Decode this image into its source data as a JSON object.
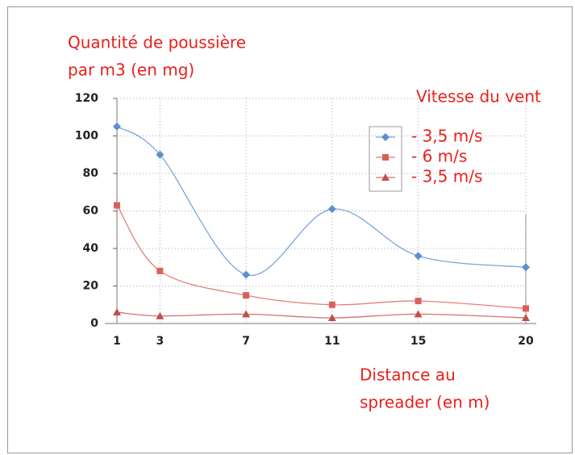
{
  "chart_data": {
    "type": "line",
    "y_label": [
      "Quantité de poussière",
      "par m3 (en mg)"
    ],
    "x_label": [
      "Distance au",
      "spreader (en m)"
    ],
    "legend_title": "Vitesse du vent",
    "x": [
      1,
      3,
      7,
      11,
      15,
      20
    ],
    "xlim": [
      1,
      20
    ],
    "xticks": [
      1,
      3,
      7,
      11,
      15,
      20
    ],
    "ylim": [
      0,
      120
    ],
    "yticks": [
      0,
      20,
      40,
      60,
      80,
      100,
      120
    ],
    "grid": true,
    "series": [
      {
        "name": "- 3,5 m/s",
        "color": "#5b8fd0",
        "marker": "diamond",
        "values": [
          105,
          90,
          26,
          61,
          36,
          30
        ]
      },
      {
        "name": "- 6 m/s",
        "color": "#d9605a",
        "marker": "square",
        "values": [
          63,
          28,
          15,
          10,
          12,
          8
        ]
      },
      {
        "name": "- 3,5 m/s",
        "color": "#c0504d",
        "marker": "triangle",
        "values": [
          6,
          4,
          5,
          3,
          5,
          3
        ]
      }
    ]
  }
}
